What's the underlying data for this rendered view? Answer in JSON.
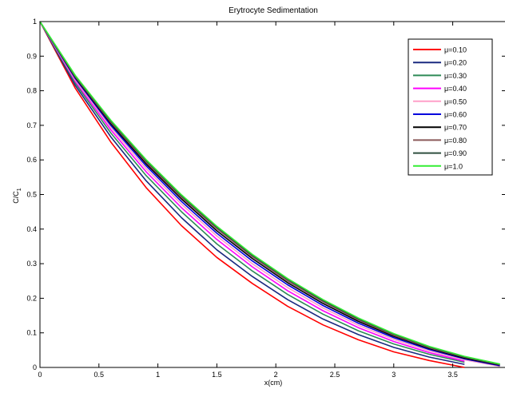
{
  "chart_data": {
    "type": "line",
    "title": "Erytrocyte Sedimentation",
    "xlabel": "x(cm)",
    "ylabel_main": "C/C",
    "ylabel_sub": "1",
    "xlim": [
      0,
      3.95
    ],
    "ylim": [
      0,
      1
    ],
    "xticks": [
      0,
      0.5,
      1,
      1.5,
      2,
      2.5,
      3,
      3.5
    ],
    "xtick_labels": [
      "0",
      "0.5",
      "1",
      "1.5",
      "2",
      "2.5",
      "3",
      "3.5"
    ],
    "yticks": [
      0,
      0.1,
      0.2,
      0.3,
      0.4,
      0.5,
      0.6,
      0.7,
      0.8,
      0.9,
      1
    ],
    "ytick_labels": [
      "0",
      "0.1",
      "0.2",
      "0.3",
      "0.4",
      "0.5",
      "0.6",
      "0.7",
      "0.8",
      "0.9",
      "1"
    ],
    "grid": false,
    "legend_position": "top-right",
    "x": [
      0,
      0.3,
      0.6,
      0.9,
      1.2,
      1.5,
      1.8,
      2.1,
      2.4,
      2.7,
      3.0,
      3.3,
      3.6,
      3.9
    ],
    "series": [
      {
        "name": "μ=0.10",
        "color": "#ff0000",
        "values": [
          1,
          0.807,
          0.652,
          0.52,
          0.41,
          0.318,
          0.243,
          0.177,
          0.123,
          0.08,
          0.045,
          0.02,
          0.0,
          null
        ]
      },
      {
        "name": "μ=0.20",
        "color": "#1a2a80",
        "values": [
          1,
          0.815,
          0.667,
          0.54,
          0.433,
          0.34,
          0.263,
          0.196,
          0.14,
          0.095,
          0.058,
          0.03,
          0.009,
          null
        ]
      },
      {
        "name": "μ=0.30",
        "color": "#2e8b57",
        "values": [
          1,
          0.822,
          0.678,
          0.555,
          0.45,
          0.357,
          0.279,
          0.211,
          0.154,
          0.106,
          0.068,
          0.038,
          0.015,
          null
        ]
      },
      {
        "name": "μ=0.40",
        "color": "#ff00ff",
        "values": [
          1,
          0.827,
          0.687,
          0.566,
          0.462,
          0.37,
          0.291,
          0.222,
          0.164,
          0.115,
          0.075,
          0.043,
          0.018,
          null
        ]
      },
      {
        "name": "μ=0.50",
        "color": "#ffa0c8",
        "values": [
          1,
          0.831,
          0.694,
          0.575,
          0.472,
          0.38,
          0.3,
          0.231,
          0.172,
          0.122,
          0.081,
          0.048,
          0.022,
          0.003
        ]
      },
      {
        "name": "μ=0.60",
        "color": "#0000dd",
        "values": [
          1,
          0.835,
          0.7,
          0.583,
          0.48,
          0.388,
          0.308,
          0.239,
          0.179,
          0.128,
          0.086,
          0.052,
          0.025,
          0.005
        ]
      },
      {
        "name": "μ=0.70",
        "color": "#000000",
        "values": [
          1,
          0.838,
          0.705,
          0.589,
          0.487,
          0.395,
          0.315,
          0.245,
          0.185,
          0.133,
          0.09,
          0.055,
          0.027,
          0.007
        ]
      },
      {
        "name": "μ=0.80",
        "color": "#8b5a5a",
        "values": [
          1,
          0.84,
          0.709,
          0.594,
          0.492,
          0.401,
          0.32,
          0.25,
          0.19,
          0.137,
          0.093,
          0.057,
          0.029,
          0.008
        ]
      },
      {
        "name": "μ=0.90",
        "color": "#2f4f3f",
        "values": [
          1,
          0.842,
          0.712,
          0.598,
          0.496,
          0.405,
          0.324,
          0.254,
          0.193,
          0.14,
          0.096,
          0.059,
          0.03,
          0.009
        ]
      },
      {
        "name": "μ=1.0",
        "color": "#33ee33",
        "values": [
          1,
          0.844,
          0.715,
          0.601,
          0.499,
          0.408,
          0.327,
          0.257,
          0.196,
          0.143,
          0.098,
          0.061,
          0.032,
          0.01
        ]
      }
    ]
  }
}
